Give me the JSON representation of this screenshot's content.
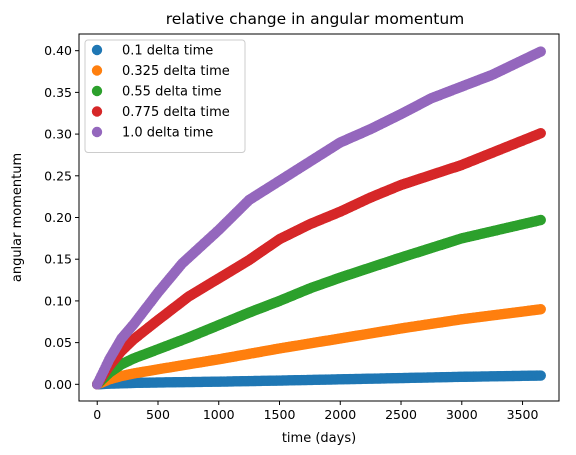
{
  "chart_data": {
    "type": "scatter",
    "title": "relative change in angular momentum",
    "xlabel": "time (days)",
    "ylabel": "angular momentum",
    "xlim": [
      -150,
      3800
    ],
    "ylim": [
      -0.02,
      0.42
    ],
    "xticks": [
      0,
      500,
      1000,
      1500,
      2000,
      2500,
      3000,
      3500
    ],
    "yticks": [
      0.0,
      0.05,
      0.1,
      0.15,
      0.2,
      0.25,
      0.3,
      0.35,
      0.4
    ],
    "ytick_labels": [
      "0.00",
      "0.05",
      "0.10",
      "0.15",
      "0.20",
      "0.25",
      "0.30",
      "0.35",
      "0.40"
    ],
    "grid": false,
    "legend_position": "top-left",
    "series": [
      {
        "name": "0.1 delta time",
        "color": "#1f77b4",
        "x": [
          0,
          50,
          100,
          200,
          300,
          500,
          750,
          1000,
          1500,
          2000,
          2500,
          3000,
          3650
        ],
        "y": [
          0.0,
          0.0004,
          0.0008,
          0.0012,
          0.0017,
          0.0022,
          0.0027,
          0.0032,
          0.0045,
          0.006,
          0.0075,
          0.009,
          0.0105
        ]
      },
      {
        "name": "0.325 delta time",
        "color": "#ff7f0e",
        "x": [
          0,
          100,
          200,
          300,
          500,
          750,
          1000,
          1500,
          2000,
          2500,
          3000,
          3650
        ],
        "y": [
          0.0,
          0.006,
          0.01,
          0.013,
          0.018,
          0.024,
          0.03,
          0.043,
          0.055,
          0.067,
          0.078,
          0.09
        ]
      },
      {
        "name": "0.55 delta time",
        "color": "#2ca02c",
        "x": [
          0,
          100,
          200,
          300,
          500,
          750,
          1000,
          1250,
          1500,
          1750,
          2000,
          2500,
          3000,
          3650
        ],
        "y": [
          0.0,
          0.014,
          0.024,
          0.031,
          0.042,
          0.056,
          0.071,
          0.086,
          0.1,
          0.115,
          0.128,
          0.152,
          0.175,
          0.197
        ]
      },
      {
        "name": "0.775 delta time",
        "color": "#d62728",
        "x": [
          0,
          100,
          200,
          300,
          500,
          750,
          1000,
          1250,
          1500,
          1750,
          2000,
          2250,
          2500,
          3000,
          3650
        ],
        "y": [
          0.0,
          0.022,
          0.04,
          0.054,
          0.077,
          0.105,
          0.127,
          0.149,
          0.174,
          0.192,
          0.207,
          0.224,
          0.239,
          0.263,
          0.301
        ]
      },
      {
        "name": "1.0 delta time",
        "color": "#9467bd",
        "x": [
          0,
          100,
          200,
          300,
          500,
          700,
          1000,
          1250,
          1500,
          1750,
          2000,
          2250,
          2500,
          2750,
          3000,
          3250,
          3650
        ],
        "y": [
          0.0,
          0.03,
          0.055,
          0.072,
          0.11,
          0.145,
          0.185,
          0.221,
          0.244,
          0.267,
          0.29,
          0.306,
          0.324,
          0.343,
          0.357,
          0.371,
          0.399
        ]
      }
    ]
  }
}
